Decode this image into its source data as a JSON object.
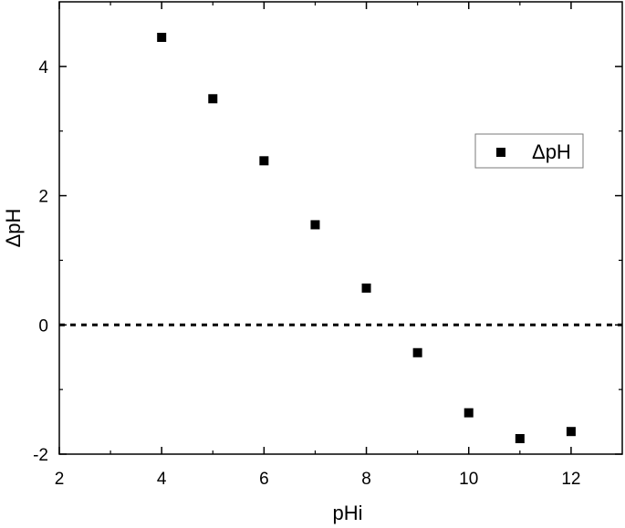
{
  "chart_data": {
    "type": "scatter",
    "xlabel": "pHi",
    "ylabel": "ΔpH",
    "xlim": [
      2,
      13
    ],
    "ylim": [
      -2,
      5
    ],
    "x_ticks": [
      "2",
      "4",
      "6",
      "8",
      "10",
      "12"
    ],
    "y_ticks": [
      "-2",
      "0",
      "2",
      "4"
    ],
    "grid": false,
    "legend_position": "top-right",
    "reference_line": {
      "y": 0,
      "style": "dotted",
      "color": "#000000"
    },
    "series": [
      {
        "name": "ΔpH",
        "marker": "square",
        "color": "#000000",
        "x": [
          4,
          5,
          6,
          7,
          8,
          9,
          10,
          11,
          12
        ],
        "y": [
          4.45,
          3.5,
          2.54,
          1.55,
          0.57,
          -0.43,
          -1.36,
          -1.76,
          -1.65
        ]
      }
    ]
  }
}
